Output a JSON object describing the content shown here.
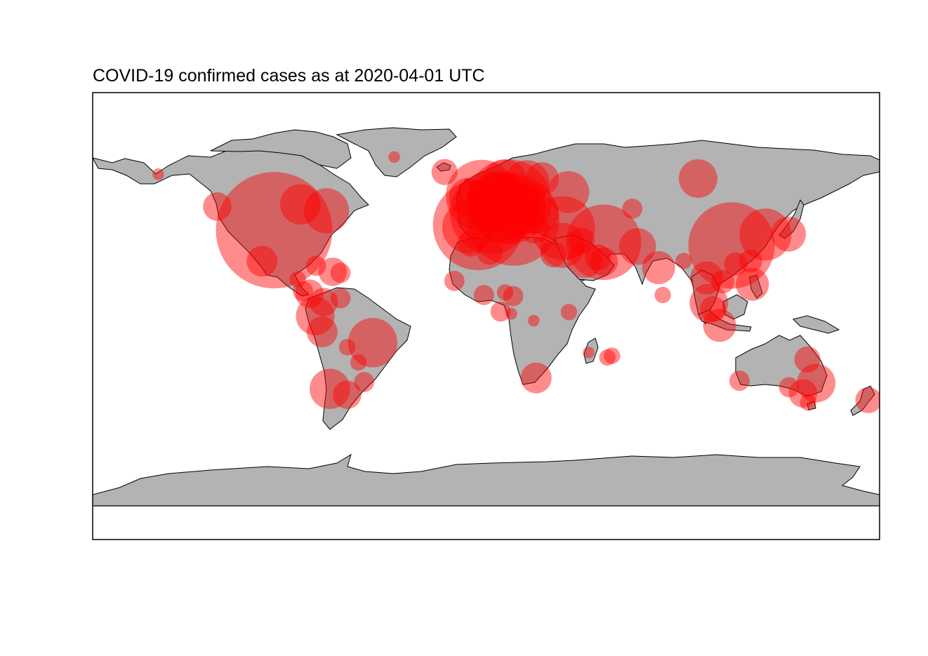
{
  "title": "COVID-19 confirmed cases as at 2020-04-01 UTC",
  "colors": {
    "land": "#b3b3b3",
    "border": "#000000",
    "bubble": "#ff0000",
    "background": "#ffffff"
  },
  "bubble_opacity": 0.45,
  "map_data": {
    "projection": "plate-carree",
    "lon_range": [
      -180,
      180
    ],
    "lat_range": [
      -90,
      83
    ],
    "note_symbol": "bubble area proportional to confirmed cases",
    "points": [
      {
        "place": "United States",
        "lon": -97.0,
        "lat": 38.0,
        "size": 1.0
      },
      {
        "place": "Italy",
        "lon": 12.5,
        "lat": 42.8,
        "size": 0.62
      },
      {
        "place": "Spain",
        "lon": -3.7,
        "lat": 40.4,
        "size": 0.6
      },
      {
        "place": "China (Hubei)",
        "lon": 112.3,
        "lat": 30.9,
        "size": 0.55
      },
      {
        "place": "Germany",
        "lon": 10.4,
        "lat": 51.2,
        "size": 0.53
      },
      {
        "place": "France",
        "lon": 2.2,
        "lat": 46.2,
        "size": 0.5
      },
      {
        "place": "Iran",
        "lon": 53.7,
        "lat": 32.4,
        "size": 0.42
      },
      {
        "place": "United Kingdom",
        "lon": -2.0,
        "lat": 54.0,
        "size": 0.38
      },
      {
        "place": "Switzerland",
        "lon": 8.2,
        "lat": 46.8,
        "size": 0.3
      },
      {
        "place": "Turkey",
        "lon": 35.2,
        "lat": 39.0,
        "size": 0.3
      },
      {
        "place": "Belgium",
        "lon": 4.5,
        "lat": 50.5,
        "size": 0.25
      },
      {
        "place": "Netherlands",
        "lon": 5.3,
        "lat": 52.1,
        "size": 0.25
      },
      {
        "place": "Austria",
        "lon": 14.6,
        "lat": 47.5,
        "size": 0.22
      },
      {
        "place": "South Korea",
        "lon": 127.8,
        "lat": 36.0,
        "size": 0.2
      },
      {
        "place": "Canada (Quebec)",
        "lon": -73.0,
        "lat": 47.0,
        "size": 0.15
      },
      {
        "place": "Canada (Ontario)",
        "lon": -85.0,
        "lat": 50.0,
        "size": 0.12
      },
      {
        "place": "Portugal",
        "lon": -8.2,
        "lat": 39.4,
        "size": 0.2
      },
      {
        "place": "Brazil",
        "lon": -51.9,
        "lat": -14.2,
        "size": 0.18
      },
      {
        "place": "Israel",
        "lon": 34.9,
        "lat": 31.0,
        "size": 0.15
      },
      {
        "place": "Sweden",
        "lon": 18.6,
        "lat": 60.1,
        "size": 0.15
      },
      {
        "place": "Norway",
        "lon": 8.5,
        "lat": 60.5,
        "size": 0.15
      },
      {
        "place": "Russia",
        "lon": 37.6,
        "lat": 55.7,
        "size": 0.13
      },
      {
        "place": "Russia (Siberia)",
        "lon": 97.0,
        "lat": 62.0,
        "size": 0.11
      },
      {
        "place": "Australia (NSW)",
        "lon": 151.0,
        "lat": -33.0,
        "size": 0.11
      },
      {
        "place": "Malaysia",
        "lon": 101.9,
        "lat": 4.2,
        "size": 0.11
      },
      {
        "place": "Czechia",
        "lon": 15.5,
        "lat": 49.8,
        "size": 0.12
      },
      {
        "place": "Denmark",
        "lon": 10.0,
        "lat": 56.2,
        "size": 0.11
      },
      {
        "place": "Ireland",
        "lon": -8.2,
        "lat": 53.4,
        "size": 0.11
      },
      {
        "place": "Chile",
        "lon": -71.5,
        "lat": -35.7,
        "size": 0.12
      },
      {
        "place": "Ecuador",
        "lon": -78.2,
        "lat": -1.8,
        "size": 0.11
      },
      {
        "place": "Poland",
        "lon": 19.1,
        "lat": 51.9,
        "size": 0.1
      },
      {
        "place": "Romania",
        "lon": 24.9,
        "lat": 45.9,
        "size": 0.1
      },
      {
        "place": "Pakistan",
        "lon": 69.3,
        "lat": 30.4,
        "size": 0.1
      },
      {
        "place": "Philippines",
        "lon": 121.8,
        "lat": 12.9,
        "size": 0.08
      },
      {
        "place": "Saudi Arabia",
        "lon": 45.1,
        "lat": 23.9,
        "size": 0.09
      },
      {
        "place": "Luxembourg",
        "lon": 6.1,
        "lat": 49.8,
        "size": 0.07
      },
      {
        "place": "Finland",
        "lon": 25.7,
        "lat": 61.9,
        "size": 0.08
      },
      {
        "place": "Greece",
        "lon": 21.8,
        "lat": 39.1,
        "size": 0.07
      },
      {
        "place": "Japan",
        "lon": 138.3,
        "lat": 36.2,
        "size": 0.09
      },
      {
        "place": "India",
        "lon": 78.9,
        "lat": 20.6,
        "size": 0.08
      },
      {
        "place": "Thailand",
        "lon": 100.9,
        "lat": 15.9,
        "size": 0.08
      },
      {
        "place": "Indonesia",
        "lon": 106.8,
        "lat": -6.2,
        "size": 0.08
      },
      {
        "place": "Mexico",
        "lon": -102.5,
        "lat": 23.6,
        "size": 0.07
      },
      {
        "place": "Peru",
        "lon": -75.0,
        "lat": -9.2,
        "size": 0.07
      },
      {
        "place": "Panama",
        "lon": -80.8,
        "lat": 8.5,
        "size": 0.06
      },
      {
        "place": "Dominican Republic",
        "lon": -70.2,
        "lat": 18.7,
        "size": 0.06
      },
      {
        "place": "Colombia",
        "lon": -74.3,
        "lat": 4.6,
        "size": 0.06
      },
      {
        "place": "Argentina",
        "lon": -63.6,
        "lat": -38.4,
        "size": 0.06
      },
      {
        "place": "Canada (BC)",
        "lon": -123.0,
        "lat": 49.0,
        "size": 0.06
      },
      {
        "place": "South Africa",
        "lon": 22.9,
        "lat": -30.6,
        "size": 0.07
      },
      {
        "place": "UAE",
        "lon": 53.8,
        "lat": 23.4,
        "size": 0.06
      },
      {
        "place": "Qatar",
        "lon": 51.2,
        "lat": 25.4,
        "size": 0.05
      },
      {
        "place": "Egypt",
        "lon": 30.8,
        "lat": 26.8,
        "size": 0.05
      },
      {
        "place": "Iraq",
        "lon": 43.7,
        "lat": 33.2,
        "size": 0.05
      },
      {
        "place": "Singapore",
        "lon": 103.8,
        "lat": 1.3,
        "size": 0.05
      },
      {
        "place": "Algeria",
        "lon": 1.7,
        "lat": 28.0,
        "size": 0.05
      },
      {
        "place": "Morocco",
        "lon": -7.1,
        "lat": 31.8,
        "size": 0.05
      },
      {
        "place": "New Zealand",
        "lon": 174.9,
        "lat": -40.9,
        "size": 0.05
      },
      {
        "place": "Australia (Victoria)",
        "lon": 145.0,
        "lat": -37.8,
        "size": 0.06
      },
      {
        "place": "Australia (Queensland)",
        "lon": 147.0,
        "lat": -22.0,
        "size": 0.05
      },
      {
        "place": "Vietnam",
        "lon": 108.3,
        "lat": 14.1,
        "size": 0.04
      },
      {
        "place": "Taiwan",
        "lon": 121.0,
        "lat": 23.7,
        "size": 0.04
      },
      {
        "place": "Hong Kong",
        "lon": 114.2,
        "lat": 22.3,
        "size": 0.04
      },
      {
        "place": "Cuba",
        "lon": -77.8,
        "lat": 21.5,
        "size": 0.03
      },
      {
        "place": "Puerto Rico",
        "lon": -66.6,
        "lat": 18.2,
        "size": 0.03
      },
      {
        "place": "Venezuela",
        "lon": -66.6,
        "lat": 6.4,
        "size": 0.03
      },
      {
        "place": "Uruguay",
        "lon": -55.8,
        "lat": -32.5,
        "size": 0.03
      },
      {
        "place": "Cameroon",
        "lon": 12.4,
        "lat": 7.4,
        "size": 0.03
      },
      {
        "place": "Ghana",
        "lon": -1.0,
        "lat": 7.9,
        "size": 0.03
      },
      {
        "place": "Senegal",
        "lon": -14.5,
        "lat": 14.5,
        "size": 0.03
      },
      {
        "place": "Kazakhstan",
        "lon": 66.9,
        "lat": 48.0,
        "size": 0.03
      },
      {
        "place": "Iceland",
        "lon": -19.0,
        "lat": 65.0,
        "size": 0.05
      },
      {
        "place": "Mauritius",
        "lon": 57.6,
        "lat": -20.3,
        "size": 0.02
      },
      {
        "place": "Reunion",
        "lon": 55.5,
        "lat": -21.1,
        "size": 0.02
      },
      {
        "place": "Greenland",
        "lon": -42.0,
        "lat": 72.0,
        "size": 0.01
      },
      {
        "place": "Alaska",
        "lon": -150.0,
        "lat": 64.0,
        "size": 0.01
      },
      {
        "place": "Kenya",
        "lon": 37.9,
        "lat": -0.02,
        "size": 0.02
      },
      {
        "place": "Nigeria",
        "lon": 8.7,
        "lat": 9.1,
        "size": 0.02
      },
      {
        "place": "Bangladesh",
        "lon": 90.4,
        "lat": 23.7,
        "size": 0.02
      },
      {
        "place": "Sri Lanka",
        "lon": 80.8,
        "lat": 7.9,
        "size": 0.02
      },
      {
        "place": "Western Australia",
        "lon": 115.9,
        "lat": -31.9,
        "size": 0.03
      },
      {
        "place": "South Australia",
        "lon": 138.6,
        "lat": -34.9,
        "size": 0.03
      },
      {
        "place": "Tasmania",
        "lon": 147.3,
        "lat": -42.0,
        "size": 0.02
      },
      {
        "place": "Bolivia",
        "lon": -63.6,
        "lat": -16.3,
        "size": 0.02
      },
      {
        "place": "Paraguay",
        "lon": -58.4,
        "lat": -23.4,
        "size": 0.02
      },
      {
        "place": "Costa Rica",
        "lon": -83.8,
        "lat": 9.7,
        "size": 0.03
      },
      {
        "place": "Honduras",
        "lon": -86.2,
        "lat": 15.2,
        "size": 0.02
      },
      {
        "place": "Gabon",
        "lon": 11.6,
        "lat": -0.8,
        "size": 0.01
      },
      {
        "place": "DR Congo",
        "lon": 21.8,
        "lat": -4.0,
        "size": 0.01
      },
      {
        "place": "Madagascar",
        "lon": 46.9,
        "lat": -18.8,
        "size": 0.01
      },
      {
        "place": "Sao Tome",
        "lon": 6.6,
        "lat": 0.2,
        "size": 0.03
      }
    ]
  }
}
